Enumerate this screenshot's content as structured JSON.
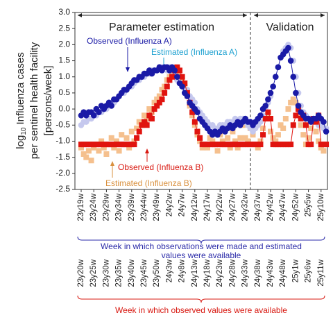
{
  "chart_data": {
    "type": "line",
    "phase_labels": [
      "Parameter estimation",
      "Validation"
    ],
    "y_label": {
      "prefix": "log",
      "subscript": "10",
      "lines": [
        "Influenza cases",
        "per sentinel health facility",
        "[persons/week]"
      ]
    },
    "x_label_top": [
      "Week in which observations were made  and estimated",
      "values were available"
    ],
    "x_label_bottom": "Week in which observed values were available",
    "categories": [
      "23y19w",
      null,
      null,
      null,
      null,
      "23y24w",
      null,
      null,
      null,
      null,
      "23y29w",
      null,
      null,
      null,
      null,
      "23y34w",
      null,
      null,
      null,
      null,
      "23y39w",
      null,
      null,
      null,
      null,
      "23y44w",
      null,
      null,
      null,
      null,
      "23y49w",
      null,
      null,
      null,
      null,
      "24y2w",
      null,
      null,
      null,
      null,
      "24y7w",
      null,
      null,
      null,
      null,
      "24y12w",
      null,
      null,
      null,
      null,
      "24y17w",
      null,
      null,
      null,
      null,
      "24y22w",
      null,
      null,
      null,
      null,
      "24y27w",
      null,
      null,
      null,
      null,
      "24y32w",
      null,
      null,
      null,
      null,
      "24y37w",
      null,
      null,
      null,
      null,
      "24y42w",
      null,
      null,
      null,
      null,
      "24y47w",
      null,
      null,
      null,
      null,
      "24y52w",
      null,
      null,
      null,
      null,
      "25y5w",
      null,
      null,
      null,
      null,
      "25y10w",
      null,
      null
    ],
    "categories_observed": [
      null,
      "23y20w",
      null,
      null,
      null,
      null,
      "23y25w",
      null,
      null,
      null,
      null,
      "23y30w",
      null,
      null,
      null,
      null,
      "23y35w",
      null,
      null,
      null,
      null,
      "23y40w",
      null,
      null,
      null,
      null,
      "23y45w",
      null,
      null,
      null,
      null,
      "23y50w",
      null,
      null,
      null,
      null,
      "24y3w",
      null,
      null,
      null,
      null,
      "24y8w",
      null,
      null,
      null,
      null,
      "24y13w",
      null,
      null,
      null,
      null,
      "24y18w",
      null,
      null,
      null,
      null,
      "24y23w",
      null,
      null,
      null,
      null,
      "24y28w",
      null,
      null,
      null,
      null,
      "24y33w",
      null,
      null,
      null,
      null,
      "24y38w",
      null,
      null,
      null,
      null,
      "24y43w",
      null,
      null,
      null,
      null,
      "24y48w",
      null,
      null,
      null,
      null,
      "25y1w",
      null,
      null,
      null,
      null,
      "25y6w",
      null,
      null,
      null,
      null,
      "25y11w",
      null
    ],
    "series": [
      {
        "name": "Estimated (Influenza B)",
        "color": "#f5c08e",
        "label_color": "#d9903e",
        "marker": "square",
        "values": [
          -1.2,
          -1.4,
          -1.5,
          -1.3,
          -1.6,
          -1.2,
          -1.1,
          -1.3,
          -1.0,
          -1.2,
          -1.4,
          -1.1,
          -0.9,
          -1.2,
          -1.0,
          -1.3,
          -0.8,
          -1.1,
          -0.9,
          -1.2,
          -0.7,
          -1.0,
          -0.6,
          -0.4,
          -0.5,
          -0.2,
          -0.3,
          0.0,
          -0.1,
          0.2,
          0.3,
          0.4,
          0.6,
          0.7,
          0.9,
          1.0,
          1.1,
          1.2,
          1.1,
          1.0,
          0.9,
          0.7,
          0.4,
          0.1,
          -0.2,
          -0.5,
          -0.8,
          -1.0,
          -1.2,
          -1.1,
          -1.2,
          -0.9,
          -1.0,
          -1.1,
          -1.3,
          -0.8,
          -1.0,
          -1.1,
          -0.9,
          -1.2,
          -0.7,
          -1.0,
          -1.2,
          -0.9,
          -0.5,
          -0.9,
          -1.0,
          -0.6,
          -0.8,
          -1.1,
          -1.2,
          -1.0,
          -0.6,
          -0.3,
          -0.2,
          -0.7,
          -0.9,
          -1.0,
          -0.8,
          -0.5,
          -0.6,
          -0.3,
          0.0,
          0.2,
          0.3,
          0.2,
          -0.2,
          -0.5,
          -0.8,
          -1.1,
          -0.9,
          -0.6,
          -0.4,
          -0.7,
          -1.0,
          -1.2,
          -1.3,
          -1.1
        ]
      },
      {
        "name": "Estimated (Influenza A)",
        "color": "#c5c8ee",
        "label_color": "#1ca0d0",
        "marker": "circle",
        "values": [
          -0.5,
          -0.4,
          -0.4,
          -0.3,
          -0.3,
          -0.2,
          -0.2,
          -0.1,
          -0.1,
          0.0,
          0.0,
          0.1,
          0.2,
          0.2,
          0.3,
          0.4,
          0.5,
          0.5,
          0.6,
          0.7,
          0.7,
          0.8,
          0.9,
          0.9,
          1.0,
          1.0,
          1.1,
          1.1,
          1.2,
          1.2,
          1.2,
          1.3,
          1.3,
          1.3,
          1.2,
          1.3,
          1.2,
          1.1,
          0.9,
          0.8,
          0.8,
          0.6,
          0.6,
          0.4,
          0.3,
          0.2,
          0.0,
          -0.1,
          -0.2,
          -0.3,
          -0.4,
          -0.5,
          -0.5,
          -0.6,
          -0.6,
          -0.5,
          -0.5,
          -0.5,
          -0.4,
          -0.4,
          -0.4,
          -0.3,
          -0.4,
          -0.3,
          -0.3,
          -0.4,
          -0.5,
          -0.6,
          -0.7,
          -0.6,
          -0.5,
          -0.4,
          -0.2,
          0.0,
          0.2,
          0.4,
          0.7,
          1.0,
          1.3,
          1.6,
          1.8,
          1.9,
          2.0,
          1.9,
          1.5,
          1.0,
          0.5,
          0.1,
          -0.1,
          -0.2,
          -0.3,
          -0.3,
          -0.4,
          -0.4,
          -0.5,
          -0.5,
          -0.6,
          -0.6
        ]
      },
      {
        "name": "Observed (Influenza B)",
        "color": "#e0140f",
        "label_color": "#d81810",
        "marker": "square",
        "line": true,
        "values": [
          -1.1,
          -1.1,
          -1.1,
          -1.1,
          -1.1,
          -1.1,
          -1.1,
          -1.1,
          -1.1,
          -1.1,
          -1.1,
          -1.1,
          -1.1,
          -1.1,
          -1.1,
          -1.1,
          -1.1,
          -1.1,
          -1.1,
          -1.1,
          -1.1,
          -1.1,
          -0.9,
          -0.7,
          -0.5,
          -0.4,
          -0.5,
          -0.2,
          -0.3,
          0.0,
          0.1,
          0.2,
          0.3,
          0.5,
          0.7,
          0.9,
          1.0,
          1.2,
          1.3,
          1.2,
          1.0,
          0.8,
          0.5,
          0.2,
          -0.1,
          -0.4,
          -0.7,
          -0.9,
          -1.1,
          -1.1,
          -1.1,
          -1.1,
          -1.1,
          -1.1,
          -1.1,
          -1.1,
          -1.1,
          -1.1,
          -1.1,
          -1.1,
          -1.1,
          -1.1,
          -1.1,
          -1.1,
          -1.1,
          -1.1,
          -1.1,
          -1.1,
          -1.1,
          -1.1,
          -1.1,
          -1.1,
          -0.8,
          -0.3,
          -0.1,
          -0.3,
          -1.1,
          -1.1,
          -1.1,
          -1.1,
          -1.1,
          -1.1,
          -1.1,
          -1.1,
          -0.5,
          -0.2,
          0.0,
          -0.3,
          -0.2,
          -0.5,
          -1.1,
          -1.1,
          -0.3,
          -0.4,
          -0.2,
          -1.1,
          -1.1,
          -1.1
        ]
      },
      {
        "name": "Observed (Influenza A)",
        "color": "#1a1aa6",
        "label_color": "#1a1aa6",
        "marker": "circle",
        "line": true,
        "values": [
          -0.2,
          -0.1,
          -0.2,
          -0.1,
          -0.1,
          -0.2,
          0.0,
          -0.1,
          0.1,
          0.0,
          0.1,
          0.2,
          0.1,
          0.3,
          0.3,
          0.4,
          0.5,
          0.6,
          0.6,
          0.7,
          0.8,
          0.9,
          0.9,
          1.0,
          1.0,
          1.1,
          1.1,
          1.2,
          1.1,
          1.2,
          1.2,
          1.3,
          1.2,
          1.3,
          1.3,
          1.2,
          1.3,
          1.2,
          1.0,
          0.8,
          0.7,
          0.5,
          0.4,
          0.2,
          0.1,
          0.0,
          -0.1,
          -0.3,
          -0.4,
          -0.5,
          -0.6,
          -0.7,
          -0.8,
          -0.7,
          -0.8,
          -0.7,
          -0.6,
          -0.7,
          -0.6,
          -0.5,
          -0.6,
          -0.5,
          -0.4,
          -0.5,
          -0.4,
          -0.3,
          -0.4,
          -0.4,
          -0.5,
          -0.4,
          -0.3,
          -0.2,
          0.0,
          0.1,
          0.3,
          0.5,
          0.7,
          1.0,
          1.3,
          1.6,
          1.7,
          1.8,
          1.9,
          1.5,
          1.0,
          0.5,
          0.1,
          -0.1,
          -0.2,
          -0.3,
          -0.3,
          -0.4,
          -0.3,
          -0.3,
          -0.2,
          -0.3,
          -0.4,
          -0.7
        ]
      }
    ],
    "ylim": [
      -2.5,
      3.0
    ],
    "yticks": [
      {
        "value": -2.5,
        "label": "-2.5"
      },
      {
        "value": -2.0,
        "label": "-2.0"
      },
      {
        "value": -1.5,
        "label": "-1.5"
      },
      {
        "value": -1.0,
        "label": "-1.0"
      },
      {
        "value": -0.5,
        "label": "-0.5"
      },
      {
        "value": 0.0,
        "label": "0.0"
      },
      {
        "value": 0.5,
        "label": "0.5"
      },
      {
        "value": 1.0,
        "label": "1.0"
      },
      {
        "value": 1.5,
        "label": "1.5"
      },
      {
        "value": 2.0,
        "label": "2.0"
      },
      {
        "value": 2.5,
        "label": "2.5"
      },
      {
        "value": 3.0,
        "label": "3.0"
      }
    ]
  }
}
